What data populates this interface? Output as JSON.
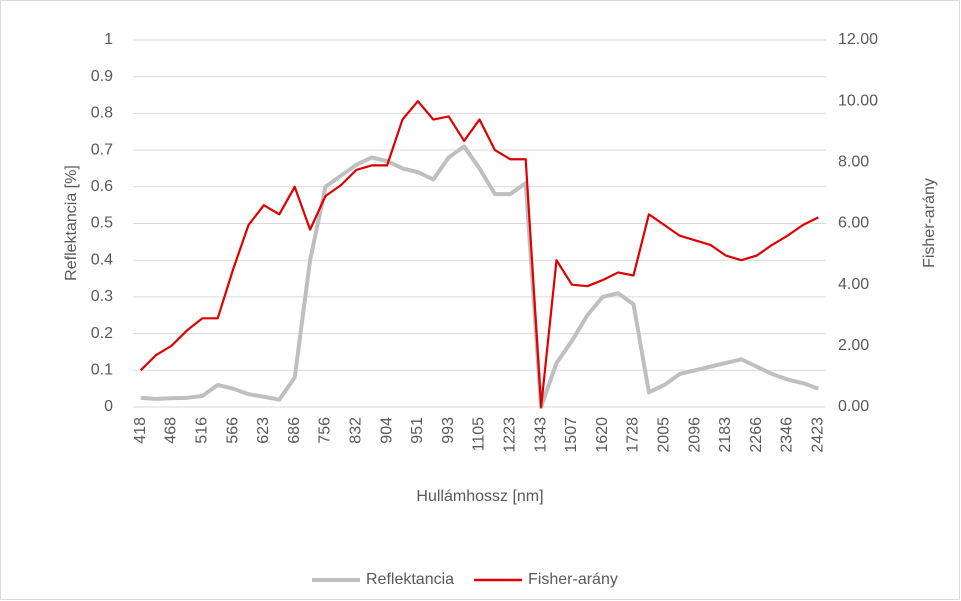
{
  "chart_data": {
    "type": "line",
    "x_label": "Hullámhossz [nm]",
    "y_label": "Reflektancia [%]",
    "y2_label": "Fisher-arány",
    "categories": [
      "418",
      null,
      "468",
      null,
      "516",
      null,
      "566",
      null,
      "623",
      null,
      "686",
      null,
      "756",
      null,
      "832",
      null,
      "904",
      null,
      "951",
      null,
      "993",
      null,
      "1105",
      null,
      "1223",
      null,
      "1343",
      null,
      "1507",
      null,
      "1620",
      null,
      "1728",
      null,
      "2005",
      null,
      "2096",
      null,
      "2183",
      null,
      "2266",
      null,
      "2346",
      null,
      "2423"
    ],
    "ylim": [
      0,
      1
    ],
    "yticks": [
      0,
      0.1,
      0.2,
      0.3,
      0.4,
      0.5,
      0.6,
      0.7,
      0.8,
      0.9,
      1
    ],
    "y2lim": [
      0,
      12
    ],
    "y2ticks": [
      {
        "value": 0,
        "label": "0.00"
      },
      {
        "value": 2,
        "label": "2.00"
      },
      {
        "value": 4,
        "label": "4.00"
      },
      {
        "value": 6,
        "label": "6.00"
      },
      {
        "value": 8,
        "label": "8.00"
      },
      {
        "value": 10,
        "label": "10.00"
      },
      {
        "value": 12,
        "label": "12.00"
      }
    ],
    "grid": true,
    "legend": "bottom",
    "series": [
      {
        "name": "Reflektancia",
        "color": "#bfbfbf",
        "values": [
          0.025,
          0.022,
          0.024,
          0.025,
          0.03,
          0.06,
          0.05,
          0.035,
          0.028,
          0.02,
          0.08,
          0.4,
          0.6,
          0.63,
          0.66,
          0.68,
          0.67,
          0.65,
          0.64,
          0.62,
          0.68,
          0.71,
          0.65,
          0.58,
          0.58,
          0.61,
          0,
          0.12,
          0.18,
          0.25,
          0.3,
          0.31,
          0.28,
          0.04,
          0.06,
          0.09,
          0.1,
          0.11,
          0.12,
          0.13,
          0.11,
          0.09,
          0.075,
          0.065,
          0.05
        ]
      },
      {
        "name": "Fisher-arány",
        "color": "#e00000",
        "axis": "y2",
        "values": [
          1.2,
          1.7,
          2.0,
          2.5,
          2.9,
          2.9,
          4.5,
          5.95,
          6.6,
          6.3,
          7.2,
          5.8,
          6.9,
          7.25,
          7.75,
          7.9,
          7.9,
          9.4,
          10.0,
          9.4,
          9.5,
          8.7,
          9.4,
          8.4,
          8.1,
          8.1,
          0,
          4.8,
          4.0,
          3.95,
          4.15,
          4.4,
          4.3,
          6.3,
          5.95,
          5.6,
          5.45,
          5.3,
          4.95,
          4.8,
          4.95,
          5.3,
          5.6,
          5.95,
          6.2
        ]
      }
    ]
  }
}
